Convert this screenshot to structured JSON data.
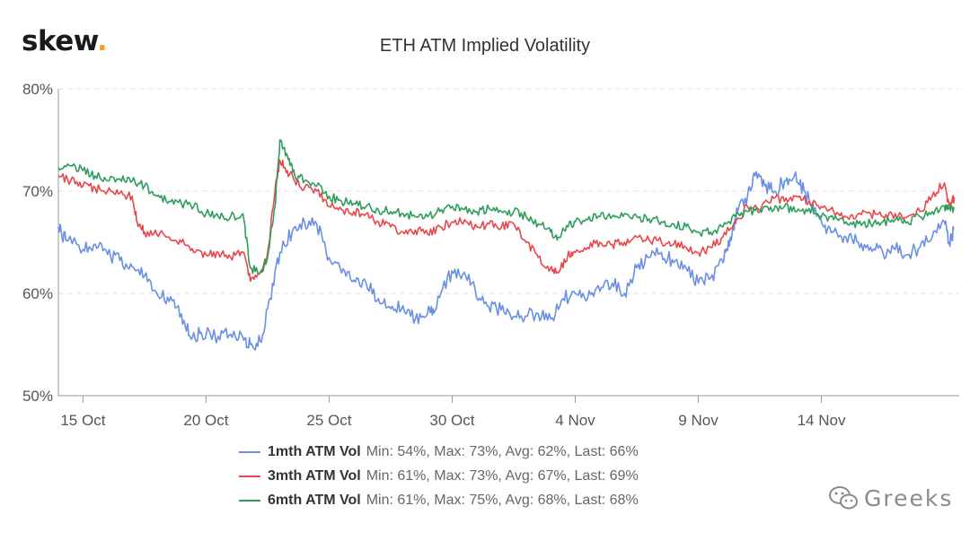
{
  "brand": {
    "logo_text": "skew",
    "logo_dot": ".",
    "dot_color": "#f2a31b"
  },
  "watermark": {
    "text": "Greeks",
    "icon": "wechat-icon"
  },
  "chart_data": {
    "type": "line",
    "title": "ETH ATM Implied Volatility",
    "xlabel": "",
    "ylabel": "",
    "y_ticks": [
      "50%",
      "60%",
      "70%",
      "80%"
    ],
    "ylim": [
      50,
      80
    ],
    "x_ticks": [
      "15 Oct",
      "20 Oct",
      "25 Oct",
      "30 Oct",
      "4 Nov",
      "9 Nov",
      "14 Nov"
    ],
    "x_range_days": [
      14,
      44.6
    ],
    "x_day_unit": "days from 1 Oct",
    "grid": "horizontal dashed",
    "legend_position": "bottom",
    "series": [
      {
        "name": "1mth ATM Vol",
        "stats": "Min: 54%, Max: 73%, Avg: 62%, Last: 66%",
        "color": "#6a8fe3",
        "points": [
          [
            14,
            66.5
          ],
          [
            14.3,
            65.2
          ],
          [
            15,
            64.3
          ],
          [
            15.5,
            64.8
          ],
          [
            16,
            63.8
          ],
          [
            16.5,
            63.2
          ],
          [
            17,
            62.6
          ],
          [
            17.5,
            61.7
          ],
          [
            18,
            60.0
          ],
          [
            18.5,
            59.2
          ],
          [
            19,
            58.0
          ],
          [
            19.4,
            55.5
          ],
          [
            19.8,
            56.2
          ],
          [
            20.5,
            55.8
          ],
          [
            21,
            56.0
          ],
          [
            21.5,
            55.7
          ],
          [
            21.8,
            55.0
          ],
          [
            22.2,
            55.3
          ],
          [
            22.6,
            59.5
          ],
          [
            23,
            64.0
          ],
          [
            23.5,
            66.0
          ],
          [
            24,
            67.0
          ],
          [
            24.5,
            66.8
          ],
          [
            25,
            63.5
          ],
          [
            25.5,
            62.0
          ],
          [
            26,
            61.3
          ],
          [
            26.5,
            61.0
          ],
          [
            27,
            59.5
          ],
          [
            27.5,
            58.5
          ],
          [
            28,
            58.8
          ],
          [
            28.5,
            57.5
          ],
          [
            29,
            58.0
          ],
          [
            29.3,
            58.3
          ],
          [
            29.8,
            61.5
          ],
          [
            30.3,
            61.8
          ],
          [
            30.8,
            61.0
          ],
          [
            31.3,
            59.0
          ],
          [
            31.8,
            58.5
          ],
          [
            32.3,
            58.2
          ],
          [
            32.8,
            57.8
          ],
          [
            33.5,
            58.0
          ],
          [
            34,
            57.5
          ],
          [
            34.5,
            59.5
          ],
          [
            35,
            60.0
          ],
          [
            35.5,
            59.5
          ],
          [
            36,
            60.2
          ],
          [
            36.5,
            61.0
          ],
          [
            37,
            60.0
          ],
          [
            37.5,
            62.5
          ],
          [
            38,
            63.5
          ],
          [
            38.5,
            64.0
          ],
          [
            39,
            63.0
          ],
          [
            39.5,
            62.5
          ],
          [
            40,
            61.0
          ],
          [
            40.5,
            61.5
          ],
          [
            41,
            63.0
          ],
          [
            41.3,
            65.5
          ],
          [
            41.6,
            68.0
          ],
          [
            42,
            69.5
          ],
          [
            42.3,
            71.5
          ],
          [
            42.7,
            70.5
          ],
          [
            43.1,
            70.0
          ],
          [
            43.5,
            71.0
          ],
          [
            43.9,
            71.5
          ],
          [
            44.3,
            70.0
          ],
          [
            44.7,
            68.0
          ],
          [
            45.1,
            66.5
          ],
          [
            45.5,
            66.0
          ],
          [
            46,
            65.5
          ],
          [
            46.5,
            65.0
          ],
          [
            47,
            64.5
          ],
          [
            47.5,
            64.0
          ],
          [
            48,
            64.3
          ],
          [
            48.5,
            63.8
          ],
          [
            49,
            64.5
          ],
          [
            49.5,
            65.5
          ],
          [
            50,
            67.0
          ],
          [
            50.2,
            65.0
          ],
          [
            50.4,
            66.3
          ]
        ]
      },
      {
        "name": "3mth ATM Vol",
        "stats": "Min: 61%, Max: 73%, Avg: 67%, Last: 69%",
        "color": "#e8474b",
        "points": [
          [
            14,
            71.5
          ],
          [
            14.5,
            71.0
          ],
          [
            15,
            70.5
          ],
          [
            15.5,
            70.3
          ],
          [
            16,
            70.0
          ],
          [
            16.5,
            69.8
          ],
          [
            17,
            69.5
          ],
          [
            17.2,
            67.0
          ],
          [
            17.5,
            66.0
          ],
          [
            18,
            65.8
          ],
          [
            18.5,
            65.5
          ],
          [
            19,
            65.0
          ],
          [
            19.5,
            64.0
          ],
          [
            20,
            63.8
          ],
          [
            20.5,
            64.0
          ],
          [
            21,
            63.5
          ],
          [
            21.5,
            64.0
          ],
          [
            21.8,
            61.2
          ],
          [
            22.2,
            62.0
          ],
          [
            22.5,
            64.0
          ],
          [
            22.8,
            70.0
          ],
          [
            23,
            73.0
          ],
          [
            23.3,
            72.0
          ],
          [
            23.6,
            71.0
          ],
          [
            24,
            70.3
          ],
          [
            24.5,
            70.0
          ],
          [
            25,
            68.5
          ],
          [
            25.5,
            68.2
          ],
          [
            26,
            68.0
          ],
          [
            26.5,
            67.8
          ],
          [
            27,
            67.0
          ],
          [
            27.5,
            66.5
          ],
          [
            28,
            66.0
          ],
          [
            28.5,
            66.2
          ],
          [
            29,
            65.8
          ],
          [
            29.5,
            66.5
          ],
          [
            30,
            67.0
          ],
          [
            30.5,
            67.2
          ],
          [
            31,
            66.5
          ],
          [
            31.5,
            66.8
          ],
          [
            32,
            66.5
          ],
          [
            32.5,
            66.8
          ],
          [
            33,
            65.0
          ],
          [
            33.5,
            63.5
          ],
          [
            34,
            62.5
          ],
          [
            34.3,
            62.0
          ],
          [
            34.7,
            63.8
          ],
          [
            35,
            64.0
          ],
          [
            35.5,
            64.5
          ],
          [
            36,
            65.0
          ],
          [
            36.5,
            64.8
          ],
          [
            37,
            65.0
          ],
          [
            37.5,
            65.5
          ],
          [
            38,
            65.2
          ],
          [
            38.5,
            65.0
          ],
          [
            39,
            64.8
          ],
          [
            39.5,
            64.5
          ],
          [
            40,
            64.0
          ],
          [
            40.5,
            64.5
          ],
          [
            41,
            65.5
          ],
          [
            41.5,
            67.0
          ],
          [
            42,
            68.5
          ],
          [
            42.5,
            68.0
          ],
          [
            43,
            69.5
          ],
          [
            43.5,
            69.0
          ],
          [
            44,
            69.5
          ],
          [
            44.5,
            69.0
          ],
          [
            45,
            68.5
          ],
          [
            45.5,
            68.0
          ],
          [
            46,
            67.5
          ],
          [
            46.5,
            67.8
          ],
          [
            47,
            67.8
          ],
          [
            47.5,
            67.5
          ],
          [
            48,
            67.8
          ],
          [
            48.5,
            67.5
          ],
          [
            49,
            68.0
          ],
          [
            49.5,
            69.5
          ],
          [
            50,
            70.8
          ],
          [
            50.2,
            68.5
          ],
          [
            50.4,
            69.4
          ]
        ]
      },
      {
        "name": "6mth ATM Vol",
        "stats": "Min: 61%, Max: 75%, Avg: 68%, Last: 68%",
        "color": "#2f9e5a",
        "points": [
          [
            14,
            72.3
          ],
          [
            14.5,
            72.5
          ],
          [
            15,
            72.0
          ],
          [
            15.5,
            71.5
          ],
          [
            16,
            71.0
          ],
          [
            16.5,
            71.2
          ],
          [
            17,
            71.0
          ],
          [
            17.5,
            70.5
          ],
          [
            18,
            69.5
          ],
          [
            18.5,
            69.0
          ],
          [
            19,
            68.8
          ],
          [
            19.5,
            68.5
          ],
          [
            20,
            67.8
          ],
          [
            20.5,
            67.5
          ],
          [
            21,
            67.5
          ],
          [
            21.5,
            67.8
          ],
          [
            21.8,
            62.5
          ],
          [
            22.2,
            62.0
          ],
          [
            22.5,
            63.5
          ],
          [
            22.8,
            68.5
          ],
          [
            23,
            75.0
          ],
          [
            23.3,
            73.5
          ],
          [
            23.6,
            71.5
          ],
          [
            24,
            71.0
          ],
          [
            24.5,
            70.5
          ],
          [
            25,
            69.5
          ],
          [
            25.5,
            69.0
          ],
          [
            26,
            68.8
          ],
          [
            26.5,
            68.5
          ],
          [
            27,
            68.2
          ],
          [
            27.5,
            68.0
          ],
          [
            28,
            67.8
          ],
          [
            28.5,
            67.5
          ],
          [
            29,
            67.5
          ],
          [
            29.5,
            68.0
          ],
          [
            30,
            68.5
          ],
          [
            30.5,
            68.2
          ],
          [
            31,
            68.0
          ],
          [
            31.5,
            68.3
          ],
          [
            32,
            68.0
          ],
          [
            32.5,
            68.0
          ],
          [
            33,
            67.5
          ],
          [
            33.5,
            66.8
          ],
          [
            34,
            66.0
          ],
          [
            34.3,
            65.5
          ],
          [
            34.7,
            66.5
          ],
          [
            35,
            67.0
          ],
          [
            35.5,
            67.2
          ],
          [
            36,
            67.5
          ],
          [
            36.5,
            67.5
          ],
          [
            37,
            67.8
          ],
          [
            37.5,
            67.5
          ],
          [
            38,
            67.3
          ],
          [
            38.5,
            67.0
          ],
          [
            39,
            66.8
          ],
          [
            39.5,
            66.5
          ],
          [
            40,
            66.0
          ],
          [
            40.5,
            66.0
          ],
          [
            41,
            66.5
          ],
          [
            41.5,
            67.5
          ],
          [
            42,
            68.0
          ],
          [
            42.5,
            68.2
          ],
          [
            43,
            68.0
          ],
          [
            43.5,
            68.5
          ],
          [
            44,
            68.0
          ],
          [
            44.5,
            68.3
          ],
          [
            45,
            67.5
          ],
          [
            45.5,
            67.2
          ],
          [
            46,
            67.0
          ],
          [
            46.5,
            66.8
          ],
          [
            47,
            66.8
          ],
          [
            47.5,
            67.0
          ],
          [
            48,
            67.2
          ],
          [
            48.5,
            67.0
          ],
          [
            49,
            67.5
          ],
          [
            49.5,
            68.0
          ],
          [
            50,
            68.5
          ],
          [
            50.2,
            68.3
          ],
          [
            50.4,
            68.3
          ]
        ]
      }
    ]
  }
}
